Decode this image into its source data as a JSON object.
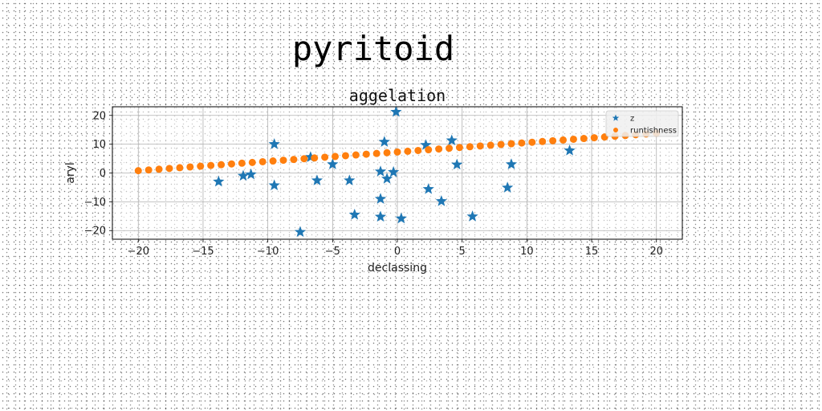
{
  "page_title": "pyritoid",
  "chart_data": {
    "type": "scatter",
    "title": "aggelation",
    "xlabel": "declassing",
    "ylabel": "aryl",
    "xlim": [
      -22,
      22
    ],
    "ylim": [
      -23,
      23
    ],
    "xticks": [
      -20,
      -15,
      -10,
      -5,
      0,
      5,
      10,
      15,
      20
    ],
    "yticks": [
      -20,
      -10,
      0,
      10,
      20
    ],
    "xtick_labels": [
      "−20",
      "−15",
      "−10",
      "−5",
      "0",
      "5",
      "10",
      "15",
      "20"
    ],
    "ytick_labels": [
      "−20",
      "−10",
      "0",
      "10",
      "20"
    ],
    "grid": true,
    "legend_position": "top-right",
    "series": [
      {
        "name": "z",
        "marker": "star",
        "color": "#1f77b4",
        "points": [
          [
            -13.8,
            -3
          ],
          [
            -11.9,
            -1
          ],
          [
            -11.3,
            -0.5
          ],
          [
            -9.5,
            10
          ],
          [
            -9.5,
            -4.3
          ],
          [
            -7.5,
            -20.5
          ],
          [
            -6.7,
            5.5
          ],
          [
            -6.2,
            -2.6
          ],
          [
            -5,
            3
          ],
          [
            -3.7,
            -2.6
          ],
          [
            -3.3,
            -14.5
          ],
          [
            -1.3,
            0.5
          ],
          [
            -1.3,
            -9
          ],
          [
            -1.3,
            -15.2
          ],
          [
            -1,
            10.8
          ],
          [
            -0.8,
            -2
          ],
          [
            -0.3,
            0.3
          ],
          [
            -0.1,
            21.2
          ],
          [
            0.3,
            -15.8
          ],
          [
            2.2,
            9.7
          ],
          [
            2.4,
            -5.6
          ],
          [
            3.4,
            -9.8
          ],
          [
            4.2,
            11.3
          ],
          [
            4.6,
            2.9
          ],
          [
            5.8,
            -15.1
          ],
          [
            8.5,
            -5.1
          ],
          [
            8.8,
            3
          ],
          [
            13.3,
            7.8
          ]
        ]
      },
      {
        "name": "runtishness",
        "marker": "circle",
        "color": "#ff7f0e",
        "points": [
          [
            -20,
            0.8
          ],
          [
            -19.2,
            1.06
          ],
          [
            -18.4,
            1.32
          ],
          [
            -17.6,
            1.58
          ],
          [
            -16.8,
            1.84
          ],
          [
            -16,
            2.1
          ],
          [
            -15.2,
            2.36
          ],
          [
            -14.4,
            2.62
          ],
          [
            -13.6,
            2.88
          ],
          [
            -12.8,
            3.14
          ],
          [
            -12,
            3.4
          ],
          [
            -11.2,
            3.66
          ],
          [
            -10.4,
            3.92
          ],
          [
            -9.6,
            4.18
          ],
          [
            -8.8,
            4.44
          ],
          [
            -8,
            4.7
          ],
          [
            -7.2,
            4.96
          ],
          [
            -6.4,
            5.22
          ],
          [
            -5.6,
            5.48
          ],
          [
            -4.8,
            5.74
          ],
          [
            -4,
            6
          ],
          [
            -3.2,
            6.26
          ],
          [
            -2.4,
            6.52
          ],
          [
            -1.6,
            6.78
          ],
          [
            -0.8,
            7.04
          ],
          [
            0,
            7.3
          ],
          [
            0.8,
            7.56
          ],
          [
            1.6,
            7.82
          ],
          [
            2.4,
            8.08
          ],
          [
            3.2,
            8.34
          ],
          [
            4,
            8.6
          ],
          [
            4.8,
            8.86
          ],
          [
            5.6,
            9.12
          ],
          [
            6.4,
            9.38
          ],
          [
            7.2,
            9.64
          ],
          [
            8,
            9.9
          ],
          [
            8.8,
            10.16
          ],
          [
            9.6,
            10.42
          ],
          [
            10.4,
            10.68
          ],
          [
            11.2,
            10.94
          ],
          [
            12,
            11.2
          ],
          [
            12.8,
            11.46
          ],
          [
            13.6,
            11.72
          ],
          [
            14.4,
            11.98
          ],
          [
            15.2,
            12.24
          ],
          [
            16,
            12.5
          ],
          [
            16.8,
            12.76
          ],
          [
            17.6,
            13.02
          ],
          [
            18.4,
            13.28
          ],
          [
            19.2,
            13.54
          ],
          [
            20,
            13.8
          ]
        ]
      }
    ]
  }
}
